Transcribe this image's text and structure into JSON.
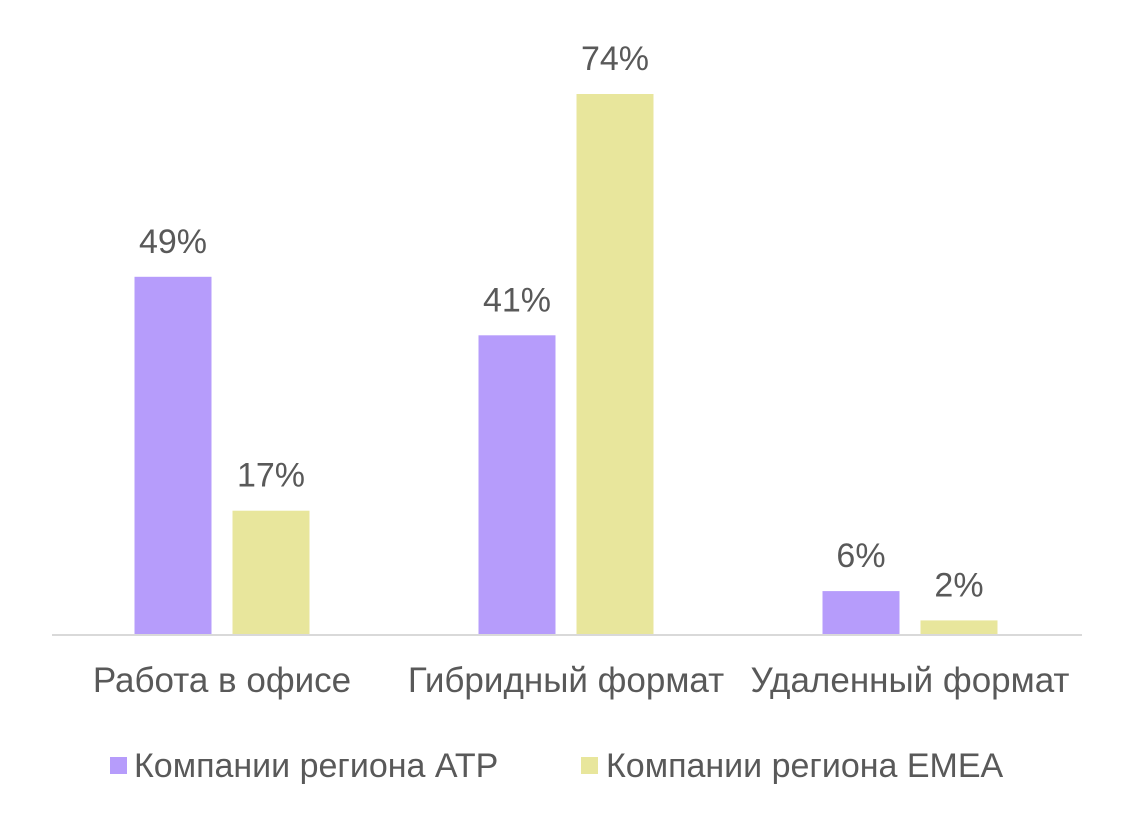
{
  "chart_data": {
    "type": "bar",
    "title": "",
    "xlabel": "",
    "ylabel": "",
    "categories": [
      "Работа в офисе",
      "Гибридный формат",
      "Удаленный формат"
    ],
    "series": [
      {
        "name": "Компании региона АТР",
        "values": [
          49,
          41,
          6
        ],
        "labels": [
          "49%",
          "41%",
          "6%"
        ],
        "color": "#b69cfb"
      },
      {
        "name": "Компании региона EMEA",
        "values": [
          17,
          74,
          2
        ],
        "labels": [
          "17%",
          "74%",
          "2%"
        ],
        "color": "#e8e69c"
      }
    ],
    "ylim": [
      0,
      74
    ],
    "grid": false,
    "legend_position": "bottom",
    "axis_color": "#d9d9d9"
  }
}
